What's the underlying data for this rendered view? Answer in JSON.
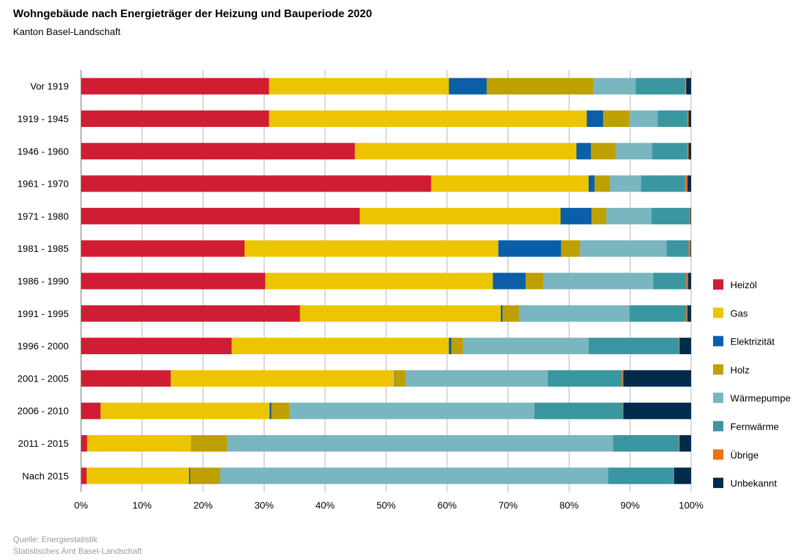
{
  "title": "Wohngebäude nach Energieträger der Heizung und Bauperiode 2020",
  "subtitle": "Kanton Basel-Landschaft",
  "source_lines": [
    "Quelle: Energiestatistik",
    "Statistisches Amt Basel-Landschaft"
  ],
  "chart_data": {
    "type": "bar",
    "orientation": "horizontal",
    "stacked": "percent",
    "categories": [
      "Vor 1919",
      "1919 - 1945",
      "1946 - 1960",
      "1961 - 1970",
      "1971 - 1980",
      "1981 - 1985",
      "1986 - 1990",
      "1991 - 1995",
      "1996 - 2000",
      "2001 - 2005",
      "2006 - 2010",
      "2011 - 2015",
      "Nach 2015"
    ],
    "xlim": [
      0,
      100
    ],
    "x_ticks": [
      "0%",
      "10%",
      "20%",
      "30%",
      "40%",
      "50%",
      "60%",
      "70%",
      "80%",
      "90%",
      "100%"
    ],
    "grid": true,
    "legend_position": "right",
    "series": [
      {
        "name": "Heizöl",
        "color": "#d11d33",
        "values": [
          30.8,
          30.8,
          44.9,
          57.4,
          45.7,
          26.8,
          30.2,
          35.9,
          24.7,
          14.7,
          3.2,
          1.0,
          0.9
        ]
      },
      {
        "name": "Gas",
        "color": "#ecc500",
        "values": [
          29.5,
          52.1,
          36.3,
          25.8,
          32.9,
          41.6,
          37.3,
          32.9,
          35.6,
          36.7,
          27.7,
          17.0,
          16.8
        ]
      },
      {
        "name": "Elektrizität",
        "color": "#0b5fa8",
        "values": [
          6.2,
          2.7,
          2.4,
          1.0,
          5.1,
          10.3,
          5.4,
          0.3,
          0.4,
          0.1,
          0.3,
          0.0,
          0.2
        ]
      },
      {
        "name": "Holz",
        "color": "#bea000",
        "values": [
          17.5,
          4.3,
          4.1,
          2.5,
          2.4,
          3.1,
          2.9,
          2.7,
          1.9,
          1.7,
          3.0,
          6.0,
          4.9
        ]
      },
      {
        "name": "Wärmepumpe",
        "color": "#7ab6bf",
        "values": [
          6.9,
          4.6,
          5.9,
          5.1,
          7.4,
          14.2,
          18.0,
          18.1,
          20.6,
          23.3,
          40.1,
          63.2,
          63.6
        ]
      },
      {
        "name": "Fernwärme",
        "color": "#3a96a1",
        "values": [
          8.1,
          4.9,
          5.8,
          7.2,
          6.3,
          3.6,
          5.4,
          9.3,
          14.8,
          12.2,
          14.5,
          10.8,
          10.7
        ]
      },
      {
        "name": "Übrige",
        "color": "#f07011",
        "values": [
          0.2,
          0.2,
          0.2,
          0.4,
          0.1,
          0.3,
          0.3,
          0.2,
          0.1,
          0.2,
          0.1,
          0.1,
          0.1
        ]
      },
      {
        "name": "Unbekannt",
        "color": "#002b4d",
        "values": [
          0.8,
          0.4,
          0.4,
          0.6,
          0.1,
          0.1,
          0.5,
          0.6,
          1.9,
          11.1,
          11.1,
          1.9,
          2.8
        ]
      }
    ]
  }
}
